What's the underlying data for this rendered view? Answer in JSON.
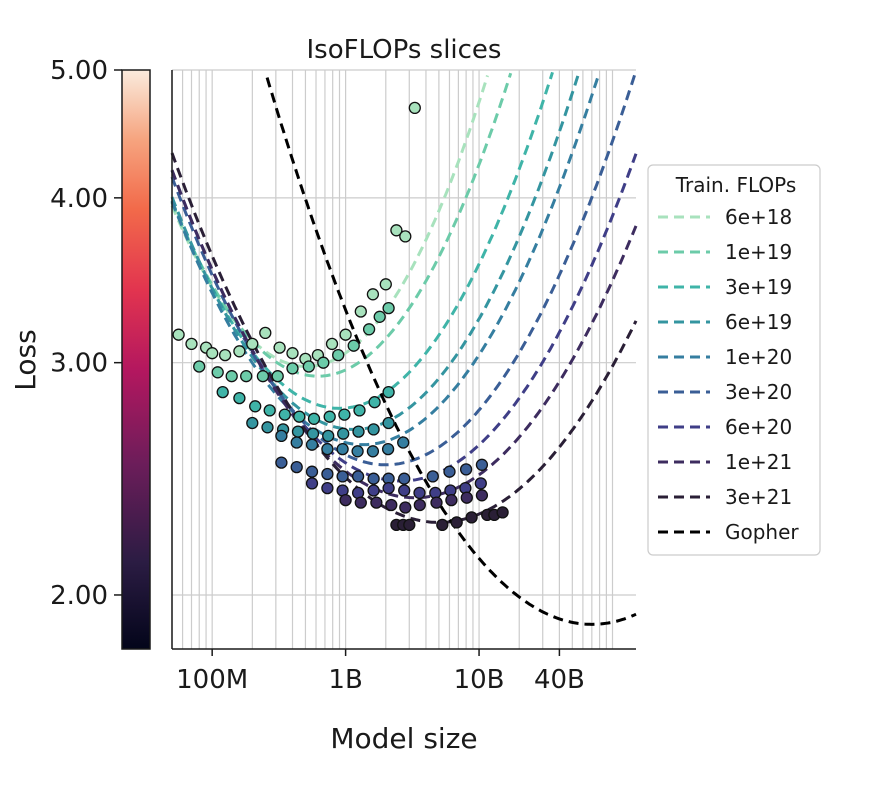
{
  "chart_data": {
    "type": "scatter",
    "title": "IsoFLOPs slices",
    "xlabel": "Model size",
    "ylabel": "Loss",
    "xscale": "log",
    "yscale": "log",
    "xlim": [
      50000000,
      150000000000
    ],
    "ylim": [
      1.82,
      5.0
    ],
    "x_ticks": [
      {
        "value": 100000000,
        "label": "100M"
      },
      {
        "value": 1000000000,
        "label": "1B"
      },
      {
        "value": 10000000000,
        "label": "10B"
      },
      {
        "value": 40000000000,
        "label": "40B"
      }
    ],
    "colorbar": {
      "ticks": [
        {
          "value": 5.0,
          "label": "5.00"
        },
        {
          "value": 4.0,
          "label": "4.00"
        },
        {
          "value": 3.0,
          "label": "3.00"
        },
        {
          "value": 2.0,
          "label": "2.00"
        }
      ],
      "range": [
        1.82,
        5.0
      ]
    },
    "legend": {
      "title": "Train. FLOPs",
      "position": "right"
    },
    "series": [
      {
        "name": "6e+18",
        "color": "#a8e2bd",
        "curve_min_x": 510000000,
        "curve_min_y": 2.98,
        "curve_k": 0.12,
        "points": [
          [
            56000000,
            3.15
          ],
          [
            70000000,
            3.1
          ],
          [
            90000000,
            3.08
          ],
          [
            100000000,
            3.05
          ],
          [
            125000000,
            3.04
          ],
          [
            160000000,
            3.06
          ],
          [
            200000000,
            3.1
          ],
          [
            250000000,
            3.16
          ],
          [
            320000000,
            3.08
          ],
          [
            400000000,
            3.05
          ],
          [
            500000000,
            3.02
          ],
          [
            620000000,
            3.04
          ],
          [
            790000000,
            3.1
          ],
          [
            1000000000,
            3.15
          ],
          [
            1300000000,
            3.28
          ],
          [
            1600000000,
            3.38
          ],
          [
            2000000000,
            3.44
          ],
          [
            2400000000,
            3.78
          ],
          [
            2800000000,
            3.74
          ],
          [
            3300000000,
            4.68
          ]
        ]
      },
      {
        "name": "1e+19",
        "color": "#6ccba9",
        "curve_min_x": 620000000,
        "curve_min_y": 2.93,
        "curve_k": 0.11,
        "points": [
          [
            80000000,
            2.98
          ],
          [
            110000000,
            2.95
          ],
          [
            140000000,
            2.93
          ],
          [
            180000000,
            2.93
          ],
          [
            240000000,
            2.93
          ],
          [
            310000000,
            2.93
          ],
          [
            400000000,
            2.97
          ],
          [
            530000000,
            2.98
          ],
          [
            680000000,
            3.0
          ],
          [
            880000000,
            3.04
          ],
          [
            1150000000,
            3.09
          ],
          [
            1500000000,
            3.18
          ],
          [
            1800000000,
            3.25
          ],
          [
            2100000000,
            3.3
          ]
        ]
      },
      {
        "name": "3e+19",
        "color": "#3fb4a8",
        "curve_min_x": 900000000,
        "curve_min_y": 2.77,
        "curve_k": 0.1,
        "points": [
          [
            120000000,
            2.85
          ],
          [
            160000000,
            2.82
          ],
          [
            210000000,
            2.78
          ],
          [
            270000000,
            2.76
          ],
          [
            350000000,
            2.74
          ],
          [
            450000000,
            2.73
          ],
          [
            580000000,
            2.72
          ],
          [
            760000000,
            2.73
          ],
          [
            980000000,
            2.74
          ],
          [
            1270000000,
            2.76
          ],
          [
            1650000000,
            2.8
          ],
          [
            2100000000,
            2.85
          ]
        ]
      },
      {
        "name": "6e+19",
        "color": "#3495a0",
        "curve_min_x": 1150000000,
        "curve_min_y": 2.67,
        "curve_k": 0.095,
        "points": [
          [
            200000000,
            2.7
          ],
          [
            260000000,
            2.68
          ],
          [
            340000000,
            2.67
          ],
          [
            440000000,
            2.66
          ],
          [
            570000000,
            2.65
          ],
          [
            740000000,
            2.64
          ],
          [
            960000000,
            2.65
          ],
          [
            1250000000,
            2.66
          ],
          [
            1620000000,
            2.67
          ],
          [
            2100000000,
            2.7
          ]
        ]
      },
      {
        "name": "1e+20",
        "color": "#357ea0",
        "curve_min_x": 1350000000,
        "curve_min_y": 2.6,
        "curve_k": 0.09,
        "points": [
          [
            330000000,
            2.64
          ],
          [
            430000000,
            2.61
          ],
          [
            560000000,
            2.6
          ],
          [
            730000000,
            2.58
          ],
          [
            950000000,
            2.58
          ],
          [
            1230000000,
            2.57
          ],
          [
            1600000000,
            2.57
          ],
          [
            2080000000,
            2.58
          ],
          [
            2700000000,
            2.61
          ]
        ]
      },
      {
        "name": "3e+20",
        "color": "#3a5e96",
        "curve_min_x": 2000000000,
        "curve_min_y": 2.51,
        "curve_k": 0.085,
        "points": [
          [
            330000000,
            2.52
          ],
          [
            430000000,
            2.5
          ],
          [
            560000000,
            2.48
          ],
          [
            730000000,
            2.47
          ],
          [
            950000000,
            2.46
          ],
          [
            1240000000,
            2.46
          ],
          [
            1620000000,
            2.45
          ],
          [
            2100000000,
            2.45
          ],
          [
            2750000000,
            2.45
          ],
          [
            4500000000,
            2.46
          ],
          [
            6000000000,
            2.48
          ],
          [
            8000000000,
            2.49
          ],
          [
            10500000000,
            2.51
          ]
        ]
      },
      {
        "name": "6e+20",
        "color": "#3f3e87",
        "curve_min_x": 2600000000,
        "curve_min_y": 2.44,
        "curve_k": 0.08,
        "points": [
          [
            560000000,
            2.43
          ],
          [
            730000000,
            2.41
          ],
          [
            950000000,
            2.4
          ],
          [
            1240000000,
            2.39
          ],
          [
            1620000000,
            2.4
          ],
          [
            2100000000,
            2.41
          ],
          [
            2750000000,
            2.4
          ],
          [
            3580000000,
            2.39
          ],
          [
            4700000000,
            2.39
          ],
          [
            6100000000,
            2.4
          ],
          [
            7900000000,
            2.41
          ],
          [
            10300000000,
            2.43
          ]
        ]
      },
      {
        "name": "1e+21",
        "color": "#3d2c5f",
        "curve_min_x": 3300000000,
        "curve_min_y": 2.37,
        "curve_k": 0.075,
        "points": [
          [
            1000000000,
            2.36
          ],
          [
            1300000000,
            2.35
          ],
          [
            1700000000,
            2.35
          ],
          [
            2200000000,
            2.34
          ],
          [
            2800000000,
            2.33
          ],
          [
            3600000000,
            2.34
          ],
          [
            4800000000,
            2.35
          ],
          [
            6200000000,
            2.36
          ],
          [
            8100000000,
            2.37
          ],
          [
            10500000000,
            2.38
          ]
        ]
      },
      {
        "name": "3e+21",
        "color": "#2a1f36",
        "curve_min_x": 5000000000,
        "curve_min_y": 2.27,
        "curve_k": 0.07,
        "points": [
          [
            2400000000,
            2.26
          ],
          [
            2700000000,
            2.26
          ],
          [
            3000000000,
            2.26
          ],
          [
            5300000000,
            2.26
          ],
          [
            6800000000,
            2.27
          ],
          [
            8800000000,
            2.29
          ],
          [
            11500000000,
            2.3
          ],
          [
            13000000000,
            2.3
          ],
          [
            15000000000,
            2.31
          ]
        ]
      },
      {
        "name": "Gopher",
        "color": "#000000",
        "curve_min_x": 70000000000,
        "curve_min_y": 1.9,
        "curve_k": 0.07,
        "points": []
      }
    ]
  }
}
